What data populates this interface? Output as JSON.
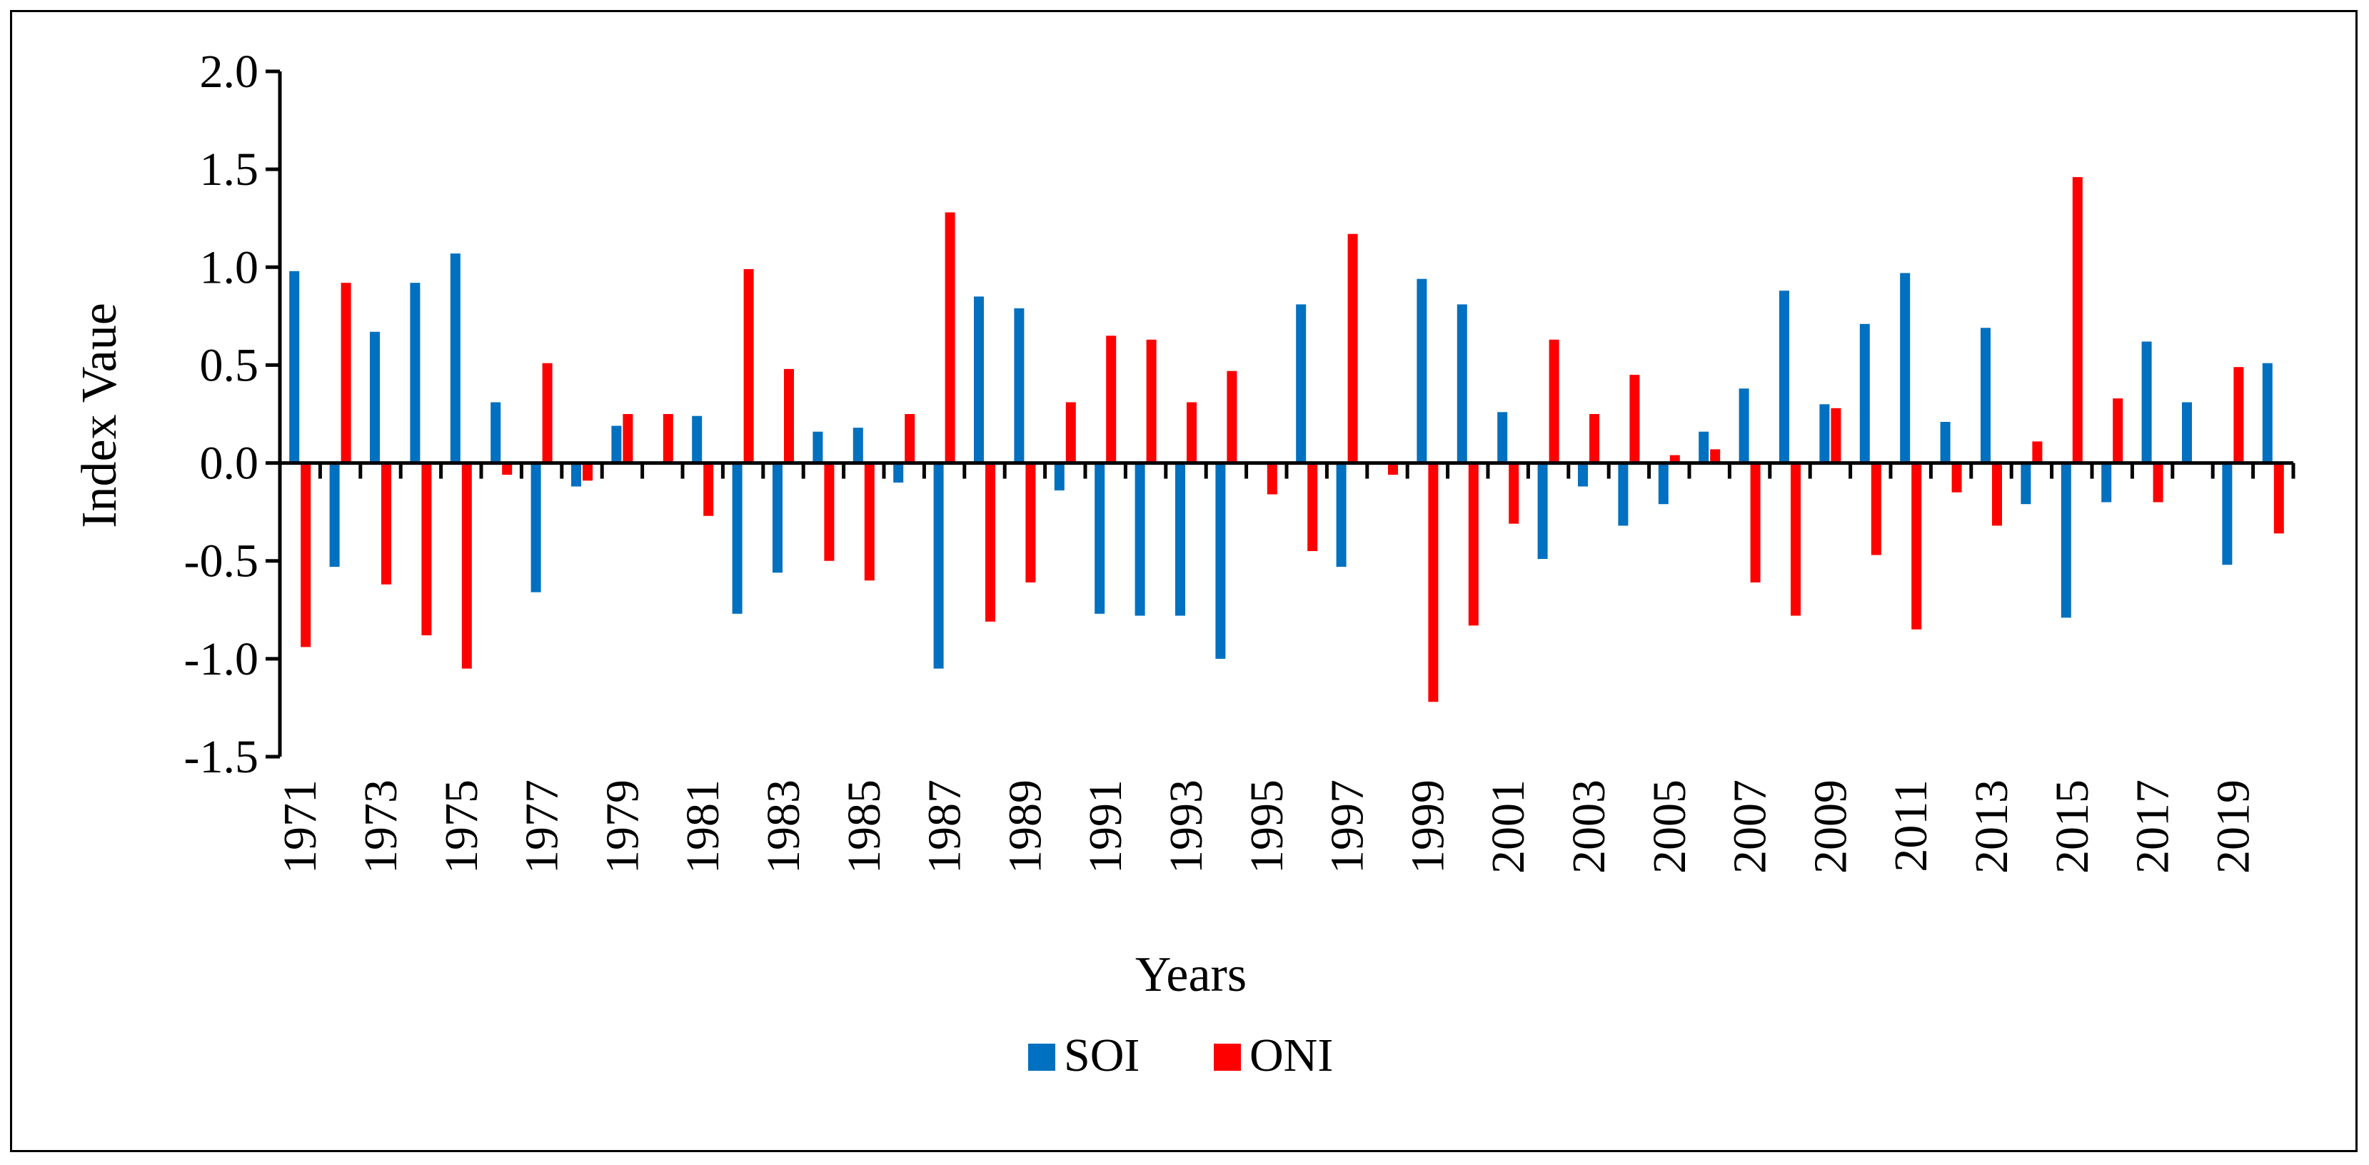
{
  "chart_data": {
    "type": "bar",
    "title": "",
    "xlabel": "Years",
    "ylabel": "Index Vaue",
    "ylim": [
      -1.5,
      2.0
    ],
    "yticks": [
      "2.0",
      "1.5",
      "1.0",
      "0.5",
      "0.0",
      "-0.5",
      "-1.0",
      "-1.5"
    ],
    "categories": [
      1971,
      1972,
      1973,
      1974,
      1975,
      1976,
      1977,
      1978,
      1979,
      1980,
      1981,
      1982,
      1983,
      1984,
      1985,
      1986,
      1987,
      1988,
      1989,
      1990,
      1991,
      1992,
      1993,
      1994,
      1995,
      1996,
      1997,
      1998,
      1999,
      2000,
      2001,
      2002,
      2003,
      2004,
      2005,
      2006,
      2007,
      2008,
      2009,
      2010,
      2011,
      2012,
      2013,
      2014,
      2015,
      2016,
      2017,
      2018,
      2019,
      2020
    ],
    "x_tick_labels": [
      "1971",
      "1973",
      "1975",
      "1977",
      "1979",
      "1981",
      "1983",
      "1985",
      "1987",
      "1989",
      "1991",
      "1993",
      "1995",
      "1997",
      "1999",
      "2001",
      "2003",
      "2005",
      "2007",
      "2009",
      "2011",
      "2013",
      "2015",
      "2017",
      "2019"
    ],
    "legend_position": "bottom-center",
    "series": [
      {
        "name": "SOI",
        "color": "#0070C0",
        "values": [
          0.98,
          -0.53,
          0.67,
          0.92,
          1.07,
          0.31,
          -0.66,
          -0.12,
          0.19,
          0.0,
          0.24,
          -0.77,
          -0.56,
          0.16,
          0.18,
          -0.1,
          -1.05,
          0.85,
          0.79,
          -0.14,
          -0.77,
          -0.78,
          -0.78,
          -1.0,
          0.0,
          0.81,
          -0.53,
          0.0,
          0.94,
          0.81,
          0.26,
          -0.49,
          -0.12,
          -0.32,
          -0.21,
          0.16,
          0.38,
          0.88,
          0.3,
          0.71,
          0.97,
          0.21,
          0.69,
          -0.21,
          -0.79,
          -0.2,
          0.62,
          0.31,
          -0.52,
          0.51
        ]
      },
      {
        "name": "ONI",
        "color": "#FF0000",
        "values": [
          -0.94,
          0.92,
          -0.62,
          -0.88,
          -1.05,
          -0.06,
          0.51,
          -0.09,
          0.25,
          0.25,
          -0.27,
          0.99,
          0.48,
          -0.5,
          -0.6,
          0.25,
          1.28,
          -0.81,
          -0.61,
          0.31,
          0.65,
          0.63,
          0.31,
          0.47,
          -0.16,
          -0.45,
          1.17,
          -0.06,
          -1.22,
          -0.83,
          -0.31,
          0.63,
          0.25,
          0.45,
          0.04,
          0.07,
          -0.61,
          -0.78,
          0.28,
          -0.47,
          -0.85,
          -0.15,
          -0.32,
          0.11,
          1.46,
          0.33,
          -0.2,
          0.0,
          0.49,
          -0.36
        ]
      }
    ]
  }
}
